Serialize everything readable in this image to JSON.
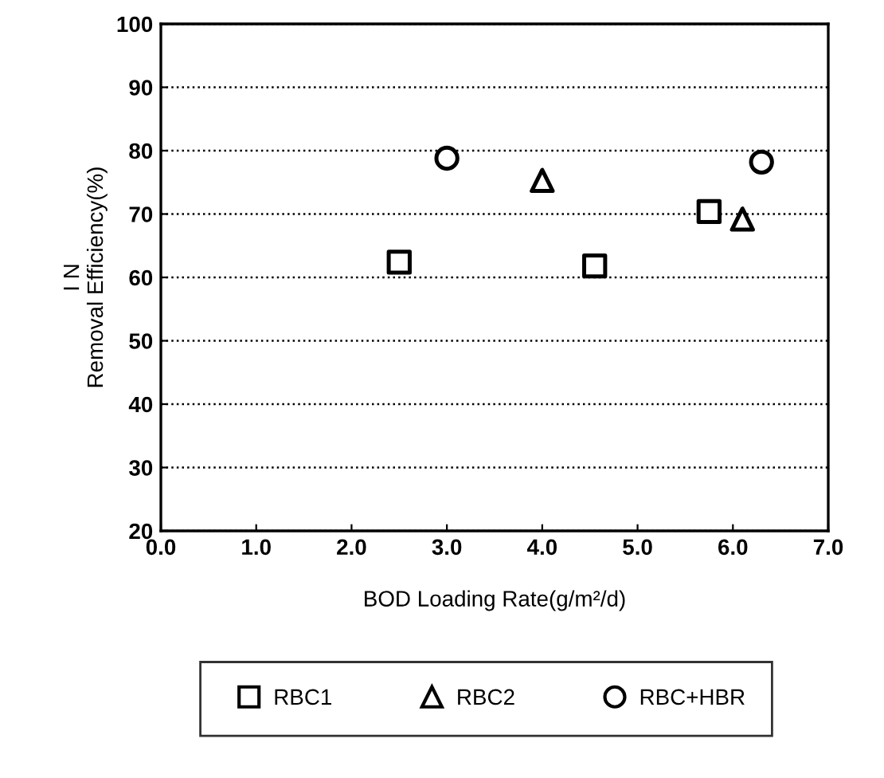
{
  "chart_data": {
    "type": "scatter",
    "xlabel": "BOD Loading Rate(g/m²/d)",
    "ylabel": "I N\nRemoval Efficiency(%)",
    "xlim": [
      0.0,
      7.0
    ],
    "xticks": [
      {
        "value": 0,
        "label": "0.0"
      },
      {
        "value": 1,
        "label": "1.0"
      },
      {
        "value": 2,
        "label": "2.0"
      },
      {
        "value": 3,
        "label": "3.0"
      },
      {
        "value": 4,
        "label": "4.0"
      },
      {
        "value": 5,
        "label": "5.0"
      },
      {
        "value": 6,
        "label": "6.0"
      },
      {
        "value": 7,
        "label": "7.0"
      }
    ],
    "ylim": [
      20,
      100
    ],
    "yticks": [
      20,
      30,
      40,
      50,
      60,
      70,
      80,
      90,
      100
    ],
    "grid": "y",
    "legend": "bottom",
    "series": [
      {
        "name": "RBC1",
        "color": "#000000",
        "marker": "square",
        "x": [
          2.5,
          4.55,
          5.75
        ],
        "values": [
          62.4,
          61.8,
          70.4
        ]
      },
      {
        "name": "RBC2",
        "color": "#000000",
        "marker": "triangle",
        "x": [
          4.0,
          6.1
        ],
        "values": [
          75.3,
          69.2
        ]
      },
      {
        "name": "RBC+HBR",
        "color": "#000000",
        "marker": "circle",
        "x": [
          3.0,
          6.3
        ],
        "values": [
          78.8,
          78.2
        ]
      }
    ]
  }
}
